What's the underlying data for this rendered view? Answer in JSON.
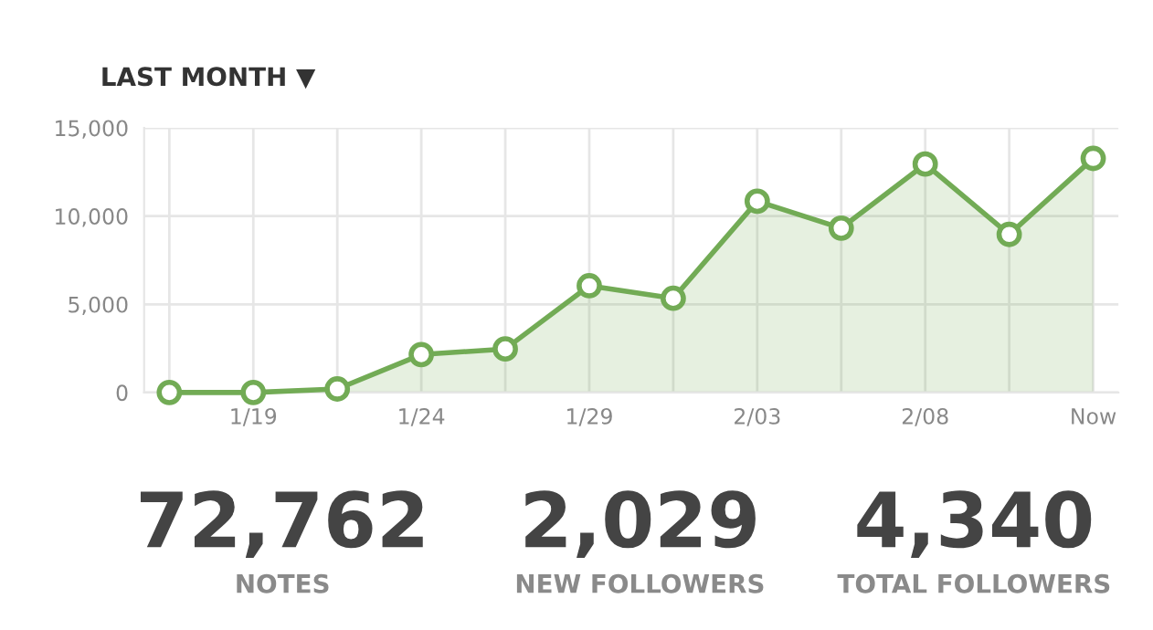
{
  "chart_data": {
    "type": "area",
    "title": "LAST MONTH ▼",
    "categories": [
      null,
      "1/19",
      null,
      "1/24",
      null,
      "1/29",
      null,
      "2/03",
      null,
      "2/08",
      null,
      "Now"
    ],
    "series": [
      {
        "color": "#72ab55",
        "values": [
          0,
          0,
          200,
          2150,
          2470,
          6050,
          5340,
          10840,
          9320,
          12950,
          8960,
          13270
        ]
      }
    ],
    "ylim": [
      0,
      15000
    ],
    "yticks": [
      {
        "value": 0,
        "label": "0"
      },
      {
        "value": 5000,
        "label": "5,000"
      },
      {
        "value": 10000,
        "label": "10,000"
      },
      {
        "value": 15000,
        "label": "15,000"
      }
    ],
    "grid": true,
    "marker": "circle",
    "line_style": "solid",
    "legend": false,
    "annotations": [
      "72,762",
      "NOTES",
      "2,029",
      "NEW FOLLOWERS",
      "4,340",
      "TOTAL FOLLOWERS"
    ]
  }
}
